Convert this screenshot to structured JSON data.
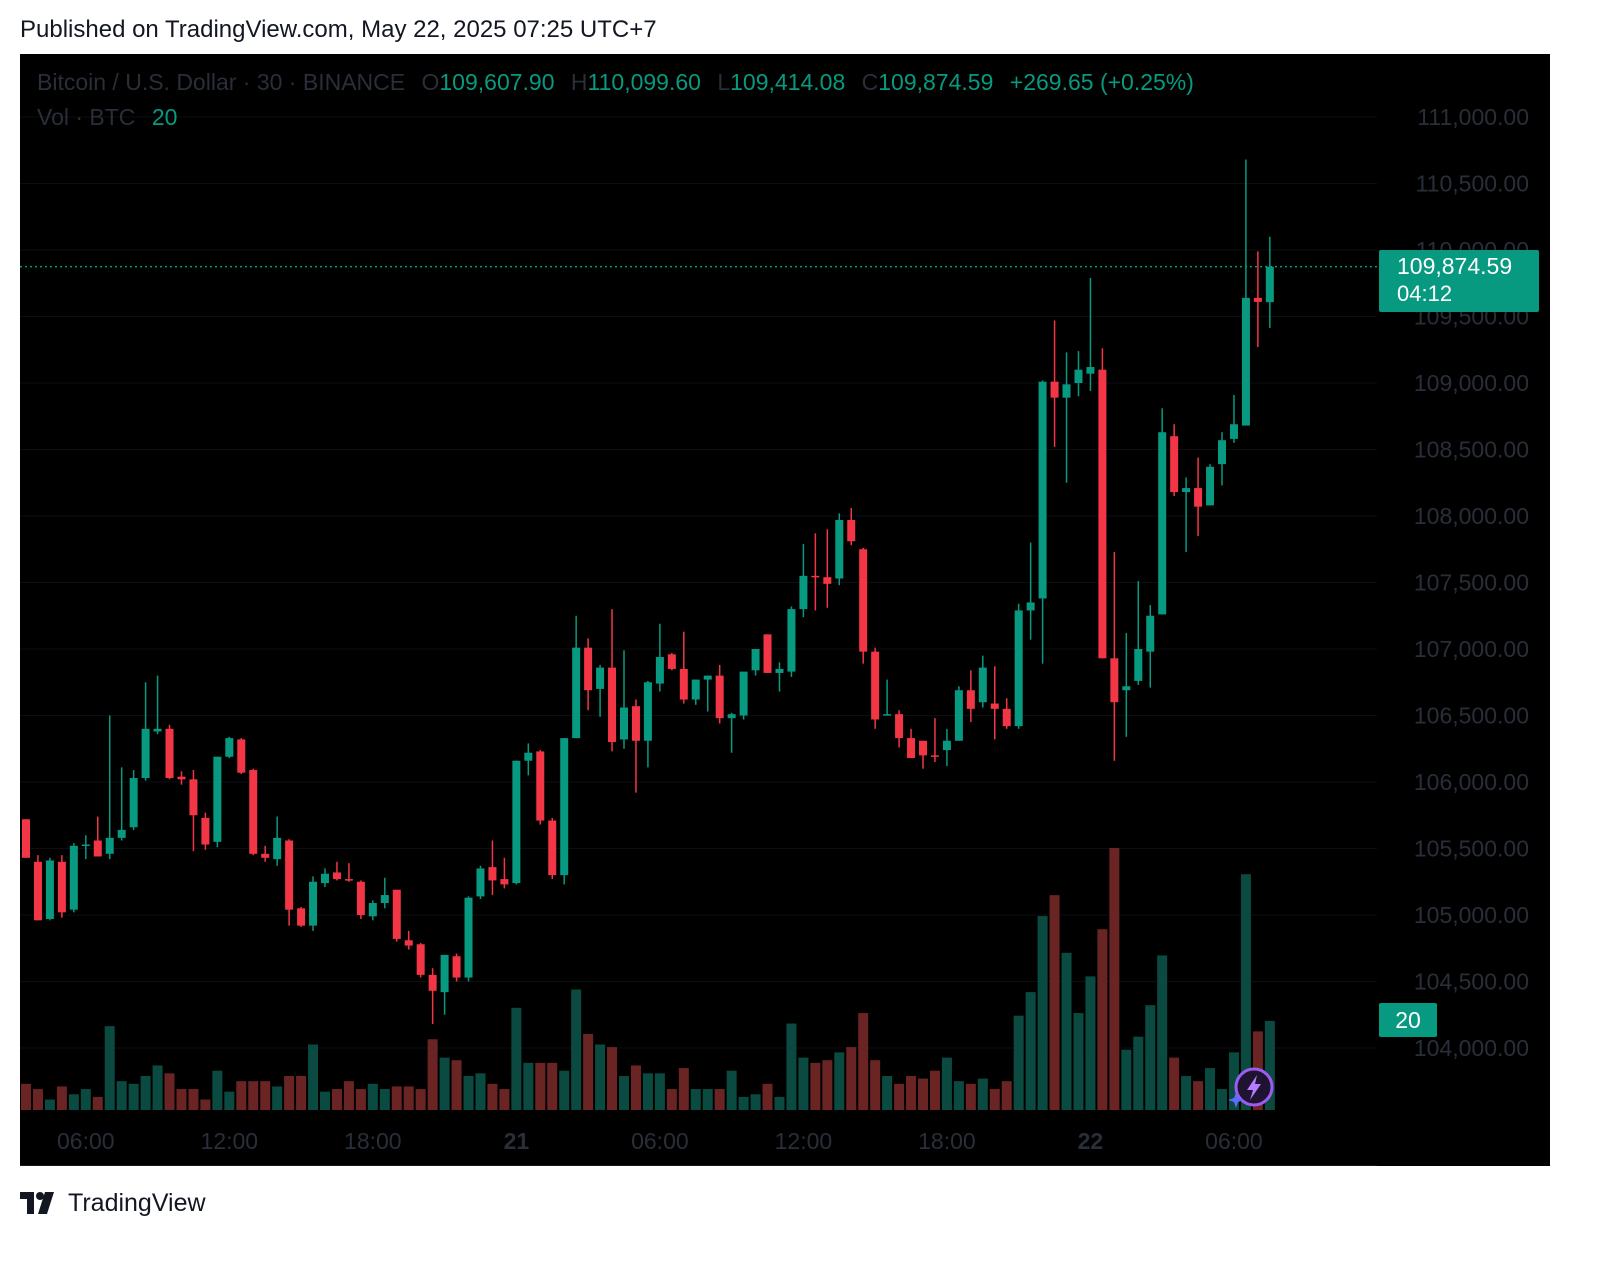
{
  "header": {
    "published": "Published on TradingView.com, May 22, 2025 07:25 UTC+7"
  },
  "legend": {
    "symbol": "Bitcoin / U.S. Dollar · 30 · BINANCE",
    "o_label": "O",
    "o_value": "109,607.90",
    "h_label": "H",
    "h_value": "110,099.60",
    "l_label": "L",
    "l_value": "109,414.08",
    "c_label": "C",
    "c_value": "109,874.59",
    "change": "+269.65 (+0.25%)",
    "vol_label": "Vol · BTC",
    "vol_value": "20"
  },
  "price_tag": {
    "price": "109,874.59",
    "countdown": "04:12"
  },
  "vol_tag": {
    "value": "20"
  },
  "footer": {
    "brand": "TradingView"
  },
  "colors": {
    "up": "#089981",
    "down": "#f23645",
    "vol_up": "#0b4a40",
    "vol_down": "#6b2424",
    "background": "#000000"
  },
  "icons": {
    "badge": "lightning-bolt-icon",
    "logo": "tradingview-logo-icon"
  },
  "chart_data": {
    "type": "candlestick",
    "symbol": "Bitcoin / U.S. Dollar",
    "interval": "30",
    "exchange": "BINANCE",
    "y_range": [
      103500,
      111250
    ],
    "y_ticks": [
      104000,
      104500,
      105000,
      105500,
      106000,
      106500,
      107000,
      107500,
      108000,
      108500,
      109000,
      109500,
      110000,
      110500,
      111000
    ],
    "y_tick_labels": [
      "104,000.00",
      "104,500.00",
      "105,000.00",
      "105,500.00",
      "106,000.00",
      "106,500.00",
      "107,000.00",
      "107,500.00",
      "108,000.00",
      "108,500.00",
      "109,000.00",
      "109,500.00",
      "110,000.00",
      "110,500.00",
      "111,000.00"
    ],
    "x_ticks": [
      {
        "label": "06:00",
        "index": 5,
        "bold": false
      },
      {
        "label": "12:00",
        "index": 17,
        "bold": false
      },
      {
        "label": "18:00",
        "index": 29,
        "bold": false
      },
      {
        "label": "21",
        "index": 41,
        "bold": true
      },
      {
        "label": "06:00",
        "index": 53,
        "bold": false
      },
      {
        "label": "12:00",
        "index": 65,
        "bold": false
      },
      {
        "label": "18:00",
        "index": 77,
        "bold": false
      },
      {
        "label": "22",
        "index": 89,
        "bold": true
      },
      {
        "label": "06:00",
        "index": 101,
        "bold": false
      }
    ],
    "last_price": 109874.59,
    "volume_max": 100,
    "candles": [
      {
        "o": 105720,
        "h": 105720,
        "l": 105430,
        "c": 105430,
        "v": 10
      },
      {
        "o": 105400,
        "h": 105450,
        "l": 104960,
        "c": 104960,
        "v": 8
      },
      {
        "o": 104970,
        "h": 105430,
        "l": 104960,
        "c": 105410,
        "v": 4
      },
      {
        "o": 105400,
        "h": 105450,
        "l": 104980,
        "c": 105020,
        "v": 9
      },
      {
        "o": 105040,
        "h": 105540,
        "l": 105020,
        "c": 105520,
        "v": 6
      },
      {
        "o": 105520,
        "h": 105600,
        "l": 105420,
        "c": 105530,
        "v": 8
      },
      {
        "o": 105560,
        "h": 105740,
        "l": 105440,
        "c": 105440,
        "v": 5
      },
      {
        "o": 105460,
        "h": 106500,
        "l": 105420,
        "c": 105580,
        "v": 32
      },
      {
        "o": 105580,
        "h": 106110,
        "l": 105560,
        "c": 105640,
        "v": 11
      },
      {
        "o": 105660,
        "h": 106090,
        "l": 105640,
        "c": 106030,
        "v": 10
      },
      {
        "o": 106030,
        "h": 106750,
        "l": 106010,
        "c": 106400,
        "v": 13
      },
      {
        "o": 106380,
        "h": 106800,
        "l": 106360,
        "c": 106400,
        "v": 17
      },
      {
        "o": 106400,
        "h": 106430,
        "l": 106020,
        "c": 106030,
        "v": 14
      },
      {
        "o": 106040,
        "h": 106080,
        "l": 105980,
        "c": 106020,
        "v": 8
      },
      {
        "o": 106020,
        "h": 106090,
        "l": 105480,
        "c": 105750,
        "v": 8
      },
      {
        "o": 105730,
        "h": 105770,
        "l": 105490,
        "c": 105530,
        "v": 4
      },
      {
        "o": 105550,
        "h": 106190,
        "l": 105510,
        "c": 106190,
        "v": 15
      },
      {
        "o": 106190,
        "h": 106340,
        "l": 106180,
        "c": 106330,
        "v": 7
      },
      {
        "o": 106320,
        "h": 106330,
        "l": 106060,
        "c": 106070,
        "v": 11
      },
      {
        "o": 106090,
        "h": 106100,
        "l": 105450,
        "c": 105460,
        "v": 11
      },
      {
        "o": 105460,
        "h": 105520,
        "l": 105400,
        "c": 105430,
        "v": 11
      },
      {
        "o": 105420,
        "h": 105740,
        "l": 105370,
        "c": 105580,
        "v": 9
      },
      {
        "o": 105560,
        "h": 105570,
        "l": 104920,
        "c": 105040,
        "v": 13
      },
      {
        "o": 105050,
        "h": 105060,
        "l": 104910,
        "c": 104920,
        "v": 13
      },
      {
        "o": 104920,
        "h": 105290,
        "l": 104880,
        "c": 105250,
        "v": 25
      },
      {
        "o": 105240,
        "h": 105350,
        "l": 105210,
        "c": 105310,
        "v": 7
      },
      {
        "o": 105320,
        "h": 105400,
        "l": 105260,
        "c": 105270,
        "v": 8
      },
      {
        "o": 105270,
        "h": 105390,
        "l": 105250,
        "c": 105260,
        "v": 11
      },
      {
        "o": 105250,
        "h": 105260,
        "l": 104970,
        "c": 105000,
        "v": 8
      },
      {
        "o": 104990,
        "h": 105110,
        "l": 104960,
        "c": 105090,
        "v": 10
      },
      {
        "o": 105090,
        "h": 105280,
        "l": 105050,
        "c": 105150,
        "v": 8
      },
      {
        "o": 105190,
        "h": 105190,
        "l": 104800,
        "c": 104820,
        "v": 9
      },
      {
        "o": 104810,
        "h": 104880,
        "l": 104740,
        "c": 104770,
        "v": 9
      },
      {
        "o": 104780,
        "h": 104790,
        "l": 104530,
        "c": 104550,
        "v": 8
      },
      {
        "o": 104550,
        "h": 104600,
        "l": 104180,
        "c": 104430,
        "v": 27
      },
      {
        "o": 104420,
        "h": 104700,
        "l": 104250,
        "c": 104700,
        "v": 20
      },
      {
        "o": 104690,
        "h": 104710,
        "l": 104500,
        "c": 104530,
        "v": 19
      },
      {
        "o": 104530,
        "h": 105140,
        "l": 104500,
        "c": 105130,
        "v": 13
      },
      {
        "o": 105140,
        "h": 105370,
        "l": 105120,
        "c": 105350,
        "v": 14
      },
      {
        "o": 105360,
        "h": 105560,
        "l": 105150,
        "c": 105260,
        "v": 10
      },
      {
        "o": 105270,
        "h": 105430,
        "l": 105200,
        "c": 105230,
        "v": 8
      },
      {
        "o": 105240,
        "h": 106160,
        "l": 105230,
        "c": 106160,
        "v": 39
      },
      {
        "o": 106160,
        "h": 106290,
        "l": 106050,
        "c": 106220,
        "v": 18
      },
      {
        "o": 106230,
        "h": 106240,
        "l": 105680,
        "c": 105710,
        "v": 18
      },
      {
        "o": 105710,
        "h": 105730,
        "l": 105270,
        "c": 105300,
        "v": 18
      },
      {
        "o": 105300,
        "h": 106330,
        "l": 105230,
        "c": 106330,
        "v": 15
      },
      {
        "o": 106330,
        "h": 107250,
        "l": 106330,
        "c": 107010,
        "v": 46
      },
      {
        "o": 107010,
        "h": 107080,
        "l": 106540,
        "c": 106690,
        "v": 29
      },
      {
        "o": 106700,
        "h": 106880,
        "l": 106490,
        "c": 106860,
        "v": 25
      },
      {
        "o": 106860,
        "h": 107300,
        "l": 106230,
        "c": 106300,
        "v": 24
      },
      {
        "o": 106320,
        "h": 106990,
        "l": 106250,
        "c": 106560,
        "v": 13
      },
      {
        "o": 106570,
        "h": 106620,
        "l": 105920,
        "c": 106310,
        "v": 17
      },
      {
        "o": 106310,
        "h": 106760,
        "l": 106110,
        "c": 106750,
        "v": 14
      },
      {
        "o": 106740,
        "h": 107190,
        "l": 106680,
        "c": 106940,
        "v": 14
      },
      {
        "o": 106960,
        "h": 106970,
        "l": 106840,
        "c": 106850,
        "v": 8
      },
      {
        "o": 106850,
        "h": 107130,
        "l": 106590,
        "c": 106620,
        "v": 16
      },
      {
        "o": 106620,
        "h": 106770,
        "l": 106580,
        "c": 106770,
        "v": 8
      },
      {
        "o": 106770,
        "h": 106800,
        "l": 106530,
        "c": 106800,
        "v": 8
      },
      {
        "o": 106800,
        "h": 106880,
        "l": 106440,
        "c": 106480,
        "v": 8
      },
      {
        "o": 106480,
        "h": 106520,
        "l": 106220,
        "c": 106510,
        "v": 15
      },
      {
        "o": 106500,
        "h": 106820,
        "l": 106470,
        "c": 106830,
        "v": 5
      },
      {
        "o": 106840,
        "h": 107000,
        "l": 106800,
        "c": 107000,
        "v": 6
      },
      {
        "o": 107110,
        "h": 107110,
        "l": 106820,
        "c": 106820,
        "v": 10
      },
      {
        "o": 106820,
        "h": 106900,
        "l": 106680,
        "c": 106850,
        "v": 5
      },
      {
        "o": 106830,
        "h": 107320,
        "l": 106790,
        "c": 107300,
        "v": 33
      },
      {
        "o": 107300,
        "h": 107790,
        "l": 107240,
        "c": 107550,
        "v": 20
      },
      {
        "o": 107550,
        "h": 107870,
        "l": 107290,
        "c": 107540,
        "v": 18
      },
      {
        "o": 107540,
        "h": 107900,
        "l": 107310,
        "c": 107490,
        "v": 19
      },
      {
        "o": 107530,
        "h": 108020,
        "l": 107480,
        "c": 107970,
        "v": 22
      },
      {
        "o": 107970,
        "h": 108060,
        "l": 107780,
        "c": 107810,
        "v": 24
      },
      {
        "o": 107750,
        "h": 107760,
        "l": 106890,
        "c": 106980,
        "v": 37
      },
      {
        "o": 106980,
        "h": 107010,
        "l": 106400,
        "c": 106470,
        "v": 19
      },
      {
        "o": 106510,
        "h": 106770,
        "l": 106500,
        "c": 106510,
        "v": 13
      },
      {
        "o": 106510,
        "h": 106540,
        "l": 106260,
        "c": 106330,
        "v": 10
      },
      {
        "o": 106330,
        "h": 106400,
        "l": 106180,
        "c": 106180,
        "v": 13
      },
      {
        "o": 106310,
        "h": 106310,
        "l": 106100,
        "c": 106200,
        "v": 12
      },
      {
        "o": 106200,
        "h": 106480,
        "l": 106150,
        "c": 106190,
        "v": 15
      },
      {
        "o": 106240,
        "h": 106400,
        "l": 106120,
        "c": 106310,
        "v": 20
      },
      {
        "o": 106310,
        "h": 106720,
        "l": 106310,
        "c": 106690,
        "v": 11
      },
      {
        "o": 106690,
        "h": 106840,
        "l": 106450,
        "c": 106550,
        "v": 10
      },
      {
        "o": 106600,
        "h": 106950,
        "l": 106560,
        "c": 106860,
        "v": 12
      },
      {
        "o": 106590,
        "h": 106870,
        "l": 106320,
        "c": 106550,
        "v": 8
      },
      {
        "o": 106550,
        "h": 106630,
        "l": 106400,
        "c": 106420,
        "v": 11
      },
      {
        "o": 106420,
        "h": 107340,
        "l": 106400,
        "c": 107290,
        "v": 36
      },
      {
        "o": 107290,
        "h": 107800,
        "l": 107070,
        "c": 107350,
        "v": 45
      },
      {
        "o": 107380,
        "h": 109020,
        "l": 106890,
        "c": 109010,
        "v": 74
      },
      {
        "o": 109010,
        "h": 109470,
        "l": 108520,
        "c": 108890,
        "v": 82
      },
      {
        "o": 108890,
        "h": 109230,
        "l": 108250,
        "c": 108990,
        "v": 60
      },
      {
        "o": 109000,
        "h": 109240,
        "l": 108900,
        "c": 109100,
        "v": 37
      },
      {
        "o": 109070,
        "h": 109790,
        "l": 108940,
        "c": 109120,
        "v": 51
      },
      {
        "o": 109100,
        "h": 109260,
        "l": 106930,
        "c": 106930,
        "v": 69
      },
      {
        "o": 106930,
        "h": 107730,
        "l": 106160,
        "c": 106600,
        "v": 100
      },
      {
        "o": 106690,
        "h": 107120,
        "l": 106340,
        "c": 106720,
        "v": 23
      },
      {
        "o": 106760,
        "h": 107510,
        "l": 106730,
        "c": 107000,
        "v": 28
      },
      {
        "o": 106980,
        "h": 107330,
        "l": 106710,
        "c": 107250,
        "v": 40
      },
      {
        "o": 107260,
        "h": 108810,
        "l": 107260,
        "c": 108630,
        "v": 59
      },
      {
        "o": 108600,
        "h": 108690,
        "l": 108150,
        "c": 108180,
        "v": 20
      },
      {
        "o": 108180,
        "h": 108290,
        "l": 107730,
        "c": 108210,
        "v": 13
      },
      {
        "o": 108210,
        "h": 108440,
        "l": 107850,
        "c": 108070,
        "v": 11
      },
      {
        "o": 108080,
        "h": 108390,
        "l": 108080,
        "c": 108370,
        "v": 16
      },
      {
        "o": 108390,
        "h": 108630,
        "l": 108230,
        "c": 108570,
        "v": 8
      },
      {
        "o": 108580,
        "h": 108910,
        "l": 108550,
        "c": 108690,
        "v": 22
      },
      {
        "o": 108680,
        "h": 110680,
        "l": 108680,
        "c": 109640,
        "v": 90
      },
      {
        "o": 109640,
        "h": 109990,
        "l": 109270,
        "c": 109610,
        "v": 30
      },
      {
        "o": 109607.9,
        "h": 110099.6,
        "l": 109414.08,
        "c": 109874.59,
        "v": 34
      }
    ]
  }
}
